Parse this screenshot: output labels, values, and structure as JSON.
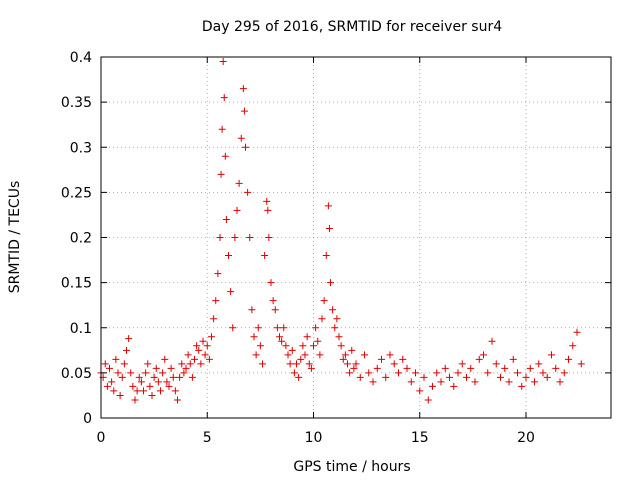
{
  "chart_data": {
    "type": "scatter",
    "title": "Day 295 of 2016, SRMTID for receiver sur4",
    "xlabel": "GPS time / hours",
    "ylabel": "SRMTID / TECUs",
    "xlim": [
      0,
      24
    ],
    "ylim": [
      0,
      0.4
    ],
    "x_ticks": [
      0,
      5,
      10,
      15,
      20
    ],
    "x_tick_labels": [
      "0",
      "5",
      "10",
      "15",
      "20"
    ],
    "y_ticks": [
      0,
      0.05,
      0.1,
      0.15,
      0.2,
      0.25,
      0.3,
      0.35,
      0.4
    ],
    "y_tick_labels": [
      "0",
      "0.05",
      "0.1",
      "0.15",
      "0.2",
      "0.25",
      "0.3",
      "0.35",
      "0.4"
    ],
    "grid": true,
    "marker": "plus",
    "marker_color": "#e00000",
    "series": [
      {
        "name": "SRMTID",
        "points": [
          [
            0.0,
            0.05
          ],
          [
            0.1,
            0.045
          ],
          [
            0.2,
            0.06
          ],
          [
            0.3,
            0.035
          ],
          [
            0.4,
            0.055
          ],
          [
            0.5,
            0.04
          ],
          [
            0.6,
            0.03
          ],
          [
            0.7,
            0.065
          ],
          [
            0.8,
            0.05
          ],
          [
            0.9,
            0.025
          ],
          [
            1.0,
            0.045
          ],
          [
            1.1,
            0.06
          ],
          [
            1.2,
            0.075
          ],
          [
            1.3,
            0.088
          ],
          [
            1.4,
            0.05
          ],
          [
            1.5,
            0.035
          ],
          [
            1.6,
            0.02
          ],
          [
            1.7,
            0.03
          ],
          [
            1.8,
            0.045
          ],
          [
            1.9,
            0.04
          ],
          [
            2.0,
            0.03
          ],
          [
            2.1,
            0.05
          ],
          [
            2.2,
            0.06
          ],
          [
            2.3,
            0.035
          ],
          [
            2.4,
            0.025
          ],
          [
            2.5,
            0.045
          ],
          [
            2.6,
            0.055
          ],
          [
            2.7,
            0.04
          ],
          [
            2.8,
            0.03
          ],
          [
            2.9,
            0.05
          ],
          [
            3.0,
            0.065
          ],
          [
            3.1,
            0.04
          ],
          [
            3.2,
            0.035
          ],
          [
            3.3,
            0.055
          ],
          [
            3.4,
            0.045
          ],
          [
            3.5,
            0.03
          ],
          [
            3.6,
            0.02
          ],
          [
            3.7,
            0.045
          ],
          [
            3.8,
            0.06
          ],
          [
            3.9,
            0.05
          ],
          [
            4.0,
            0.055
          ],
          [
            4.1,
            0.07
          ],
          [
            4.2,
            0.06
          ],
          [
            4.3,
            0.045
          ],
          [
            4.4,
            0.065
          ],
          [
            4.5,
            0.08
          ],
          [
            4.6,
            0.075
          ],
          [
            4.7,
            0.06
          ],
          [
            4.8,
            0.085
          ],
          [
            4.9,
            0.07
          ],
          [
            5.0,
            0.08
          ],
          [
            5.1,
            0.065
          ],
          [
            5.2,
            0.09
          ],
          [
            5.3,
            0.11
          ],
          [
            5.4,
            0.13
          ],
          [
            5.5,
            0.16
          ],
          [
            5.6,
            0.2
          ],
          [
            5.65,
            0.27
          ],
          [
            5.7,
            0.32
          ],
          [
            5.75,
            0.395
          ],
          [
            5.8,
            0.355
          ],
          [
            5.85,
            0.29
          ],
          [
            5.9,
            0.22
          ],
          [
            6.0,
            0.18
          ],
          [
            6.1,
            0.14
          ],
          [
            6.2,
            0.1
          ],
          [
            6.3,
            0.2
          ],
          [
            6.4,
            0.23
          ],
          [
            6.5,
            0.26
          ],
          [
            6.6,
            0.31
          ],
          [
            6.7,
            0.365
          ],
          [
            6.75,
            0.34
          ],
          [
            6.8,
            0.3
          ],
          [
            6.9,
            0.25
          ],
          [
            7.0,
            0.2
          ],
          [
            7.1,
            0.12
          ],
          [
            7.2,
            0.09
          ],
          [
            7.3,
            0.07
          ],
          [
            7.4,
            0.1
          ],
          [
            7.5,
            0.08
          ],
          [
            7.6,
            0.06
          ],
          [
            7.7,
            0.18
          ],
          [
            7.8,
            0.24
          ],
          [
            7.85,
            0.23
          ],
          [
            7.9,
            0.2
          ],
          [
            8.0,
            0.15
          ],
          [
            8.1,
            0.13
          ],
          [
            8.2,
            0.12
          ],
          [
            8.3,
            0.1
          ],
          [
            8.4,
            0.09
          ],
          [
            8.5,
            0.085
          ],
          [
            8.6,
            0.1
          ],
          [
            8.7,
            0.08
          ],
          [
            8.8,
            0.07
          ],
          [
            8.9,
            0.06
          ],
          [
            9.0,
            0.075
          ],
          [
            9.1,
            0.05
          ],
          [
            9.2,
            0.06
          ],
          [
            9.3,
            0.045
          ],
          [
            9.4,
            0.065
          ],
          [
            9.5,
            0.08
          ],
          [
            9.6,
            0.07
          ],
          [
            9.7,
            0.09
          ],
          [
            9.8,
            0.06
          ],
          [
            9.9,
            0.055
          ],
          [
            10.0,
            0.08
          ],
          [
            10.1,
            0.1
          ],
          [
            10.2,
            0.085
          ],
          [
            10.3,
            0.07
          ],
          [
            10.4,
            0.11
          ],
          [
            10.5,
            0.13
          ],
          [
            10.6,
            0.18
          ],
          [
            10.7,
            0.235
          ],
          [
            10.75,
            0.21
          ],
          [
            10.8,
            0.15
          ],
          [
            10.9,
            0.12
          ],
          [
            11.0,
            0.1
          ],
          [
            11.1,
            0.11
          ],
          [
            11.2,
            0.09
          ],
          [
            11.3,
            0.08
          ],
          [
            11.4,
            0.065
          ],
          [
            11.5,
            0.07
          ],
          [
            11.6,
            0.06
          ],
          [
            11.7,
            0.05
          ],
          [
            11.8,
            0.075
          ],
          [
            11.9,
            0.055
          ],
          [
            12.0,
            0.06
          ],
          [
            12.2,
            0.045
          ],
          [
            12.4,
            0.07
          ],
          [
            12.6,
            0.05
          ],
          [
            12.8,
            0.04
          ],
          [
            13.0,
            0.055
          ],
          [
            13.2,
            0.065
          ],
          [
            13.4,
            0.045
          ],
          [
            13.6,
            0.07
          ],
          [
            13.8,
            0.06
          ],
          [
            14.0,
            0.05
          ],
          [
            14.2,
            0.065
          ],
          [
            14.4,
            0.055
          ],
          [
            14.6,
            0.04
          ],
          [
            14.8,
            0.05
          ],
          [
            15.0,
            0.03
          ],
          [
            15.2,
            0.045
          ],
          [
            15.4,
            0.02
          ],
          [
            15.6,
            0.035
          ],
          [
            15.8,
            0.05
          ],
          [
            16.0,
            0.04
          ],
          [
            16.2,
            0.055
          ],
          [
            16.4,
            0.045
          ],
          [
            16.6,
            0.035
          ],
          [
            16.8,
            0.05
          ],
          [
            17.0,
            0.06
          ],
          [
            17.2,
            0.045
          ],
          [
            17.4,
            0.055
          ],
          [
            17.6,
            0.04
          ],
          [
            17.8,
            0.065
          ],
          [
            18.0,
            0.07
          ],
          [
            18.2,
            0.05
          ],
          [
            18.4,
            0.085
          ],
          [
            18.6,
            0.06
          ],
          [
            18.8,
            0.045
          ],
          [
            19.0,
            0.055
          ],
          [
            19.2,
            0.04
          ],
          [
            19.4,
            0.065
          ],
          [
            19.6,
            0.05
          ],
          [
            19.8,
            0.035
          ],
          [
            20.0,
            0.045
          ],
          [
            20.2,
            0.055
          ],
          [
            20.4,
            0.04
          ],
          [
            20.6,
            0.06
          ],
          [
            20.8,
            0.05
          ],
          [
            21.0,
            0.045
          ],
          [
            21.2,
            0.07
          ],
          [
            21.4,
            0.055
          ],
          [
            21.6,
            0.04
          ],
          [
            21.8,
            0.05
          ],
          [
            22.0,
            0.065
          ],
          [
            22.2,
            0.08
          ],
          [
            22.4,
            0.095
          ],
          [
            22.6,
            0.06
          ]
        ]
      }
    ]
  }
}
